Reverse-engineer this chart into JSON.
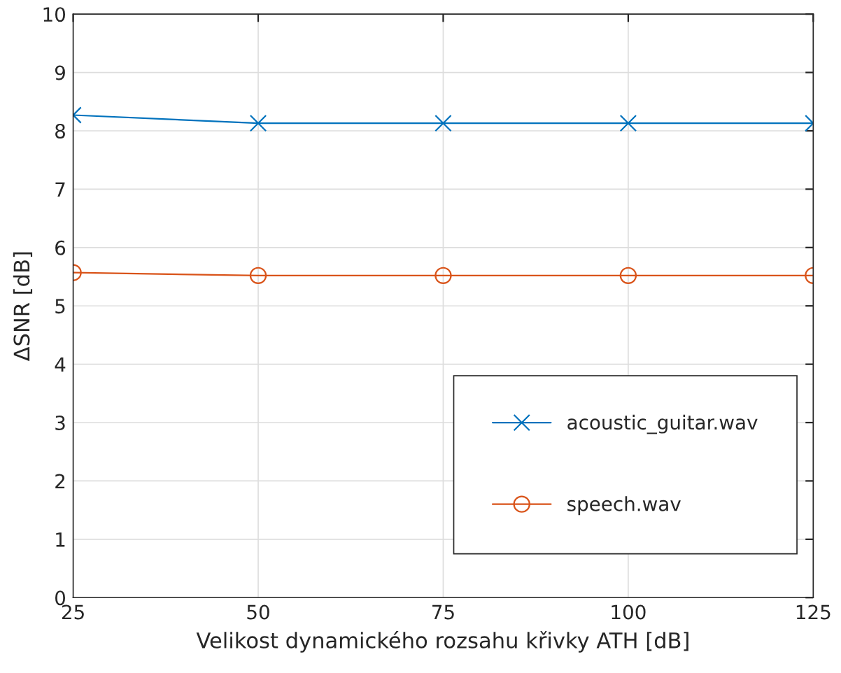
{
  "chart_data": {
    "type": "line",
    "xlabel": "Velikost dynamického rozsahu křivky ATH [dB]",
    "ylabel": "ΔSNR [dB]",
    "x": [
      25,
      50,
      75,
      100,
      125
    ],
    "series": [
      {
        "name": "acoustic_guitar.wav",
        "color": "#0072bd",
        "marker": "cross",
        "values": [
          8.27,
          8.13,
          8.13,
          8.13,
          8.13
        ]
      },
      {
        "name": "speech.wav",
        "color": "#d95319",
        "marker": "circle",
        "values": [
          5.57,
          5.52,
          5.52,
          5.52,
          5.52
        ]
      }
    ],
    "xlim": [
      25,
      125
    ],
    "xticks": [
      25,
      50,
      75,
      100,
      125
    ],
    "ylim": [
      0,
      10
    ],
    "yticks": [
      0,
      1,
      2,
      3,
      4,
      5,
      6,
      7,
      8,
      9,
      10
    ],
    "grid": true,
    "legend": "lower right",
    "line_style": "solid"
  }
}
